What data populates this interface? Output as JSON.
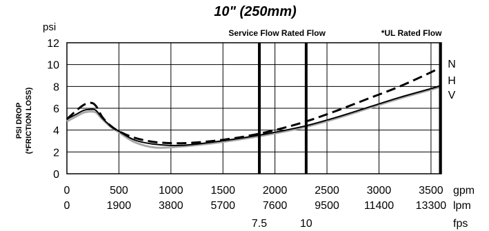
{
  "chart_data": {
    "type": "line",
    "title": "10\"  (250mm)",
    "ylabel_unit": "psi",
    "ylabel": [
      "PSI DROP",
      "(*FRICTION LOSS)"
    ],
    "ylim": [
      0,
      12
    ],
    "yticks": [
      0,
      2,
      4,
      6,
      8,
      10,
      12
    ],
    "xlim": [
      0,
      3600
    ],
    "x_axes": [
      {
        "unit": "gpm",
        "ticks": [
          {
            "x": 0,
            "label": "0"
          },
          {
            "x": 500,
            "label": "500"
          },
          {
            "x": 1000,
            "label": "1000"
          },
          {
            "x": 1500,
            "label": "1500"
          },
          {
            "x": 2000,
            "label": "2000"
          },
          {
            "x": 2500,
            "label": "2500"
          },
          {
            "x": 3000,
            "label": "3000"
          },
          {
            "x": 3500,
            "label": "3500"
          }
        ]
      },
      {
        "unit": "lpm",
        "ticks": [
          {
            "x": 0,
            "label": "0"
          },
          {
            "x": 500,
            "label": "1900"
          },
          {
            "x": 1000,
            "label": "3800"
          },
          {
            "x": 1500,
            "label": "5700"
          },
          {
            "x": 2000,
            "label": "7600"
          },
          {
            "x": 2500,
            "label": "9500"
          },
          {
            "x": 3000,
            "label": "11400"
          },
          {
            "x": 3500,
            "label": "13300"
          }
        ]
      },
      {
        "unit": "fps",
        "ticks": [
          {
            "x": 1850,
            "label": "7.5"
          },
          {
            "x": 2300,
            "label": "10"
          }
        ]
      }
    ],
    "grid": true,
    "vlines": [
      {
        "x": 1850,
        "label": "Service Flow"
      },
      {
        "x": 2300,
        "label": "Rated Flow"
      },
      {
        "x": 3590,
        "label": "*UL Rated Flow"
      }
    ],
    "series": [
      {
        "name": "N",
        "style": "dashed",
        "color": "#000000",
        "x": [
          0,
          80,
          160,
          230,
          280,
          340,
          420,
          500,
          650,
          850,
          1100,
          1400,
          1700,
          2000,
          2300,
          2600,
          2900,
          3200,
          3500,
          3600
        ],
        "y": [
          5.0,
          5.7,
          6.3,
          6.5,
          6.2,
          5.2,
          4.4,
          3.9,
          3.3,
          2.9,
          2.8,
          3.0,
          3.4,
          4.0,
          4.8,
          5.8,
          6.9,
          8.0,
          9.3,
          9.8
        ]
      },
      {
        "name": "H",
        "style": "solid",
        "color": "#000000",
        "x": [
          0,
          80,
          160,
          230,
          280,
          340,
          420,
          500,
          650,
          850,
          1100,
          1400,
          1700,
          2000,
          2300,
          2600,
          2900,
          3200,
          3500,
          3600
        ],
        "y": [
          5.0,
          5.4,
          5.8,
          5.9,
          5.8,
          5.1,
          4.4,
          3.9,
          3.1,
          2.7,
          2.6,
          2.9,
          3.3,
          3.8,
          4.4,
          5.2,
          6.1,
          7.0,
          7.8,
          8.1
        ]
      },
      {
        "name": "V",
        "style": "solid",
        "color": "#a8a8a8",
        "x": [
          0,
          80,
          160,
          230,
          280,
          340,
          420,
          500,
          650,
          850,
          1100,
          1400,
          1700,
          2000,
          2300,
          2600,
          2900,
          3200,
          3500,
          3600
        ],
        "y": [
          4.8,
          5.2,
          5.6,
          5.7,
          5.6,
          5.0,
          4.3,
          3.8,
          2.9,
          2.4,
          2.5,
          2.8,
          3.2,
          3.7,
          4.3,
          5.1,
          6.0,
          6.9,
          7.7,
          8.0
        ]
      }
    ]
  }
}
